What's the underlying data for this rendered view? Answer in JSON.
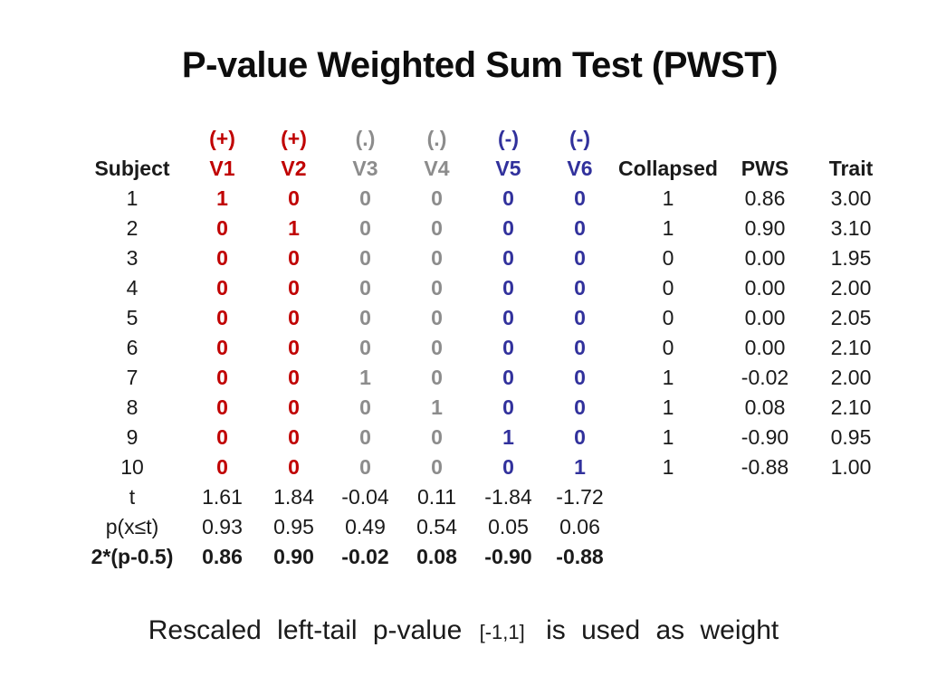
{
  "title": "P-value Weighted Sum Test (PWST)",
  "colors": {
    "positive": "#c00000",
    "neutral": "#8c8c8c",
    "negative": "#31319c"
  },
  "table": {
    "sign_row": [
      "",
      "(+)",
      "(+)",
      "(.)",
      "(.)",
      "(-)",
      "(-)",
      "",
      "",
      ""
    ],
    "headers": [
      "Subject",
      "V1",
      "V2",
      "V3",
      "V4",
      "V5",
      "V6",
      "Collapsed",
      "PWS",
      "Trait"
    ],
    "rows": [
      {
        "subject": "1",
        "v": [
          "1",
          "0",
          "0",
          "0",
          "0",
          "0"
        ],
        "collapsed": "1",
        "pws": "0.86",
        "trait": "3.00"
      },
      {
        "subject": "2",
        "v": [
          "0",
          "1",
          "0",
          "0",
          "0",
          "0"
        ],
        "collapsed": "1",
        "pws": "0.90",
        "trait": "3.10"
      },
      {
        "subject": "3",
        "v": [
          "0",
          "0",
          "0",
          "0",
          "0",
          "0"
        ],
        "collapsed": "0",
        "pws": "0.00",
        "trait": "1.95"
      },
      {
        "subject": "4",
        "v": [
          "0",
          "0",
          "0",
          "0",
          "0",
          "0"
        ],
        "collapsed": "0",
        "pws": "0.00",
        "trait": "2.00"
      },
      {
        "subject": "5",
        "v": [
          "0",
          "0",
          "0",
          "0",
          "0",
          "0"
        ],
        "collapsed": "0",
        "pws": "0.00",
        "trait": "2.05"
      },
      {
        "subject": "6",
        "v": [
          "0",
          "0",
          "0",
          "0",
          "0",
          "0"
        ],
        "collapsed": "0",
        "pws": "0.00",
        "trait": "2.10"
      },
      {
        "subject": "7",
        "v": [
          "0",
          "0",
          "1",
          "0",
          "0",
          "0"
        ],
        "collapsed": "1",
        "pws": "-0.02",
        "trait": "2.00"
      },
      {
        "subject": "8",
        "v": [
          "0",
          "0",
          "0",
          "1",
          "0",
          "0"
        ],
        "collapsed": "1",
        "pws": "0.08",
        "trait": "2.10"
      },
      {
        "subject": "9",
        "v": [
          "0",
          "0",
          "0",
          "0",
          "1",
          "0"
        ],
        "collapsed": "1",
        "pws": "-0.90",
        "trait": "0.95"
      },
      {
        "subject": "10",
        "v": [
          "0",
          "0",
          "0",
          "0",
          "0",
          "1"
        ],
        "collapsed": "1",
        "pws": "-0.88",
        "trait": "1.00"
      }
    ],
    "stat_rows": [
      {
        "label": "t",
        "v": [
          "1.61",
          "1.84",
          "-0.04",
          "0.11",
          "-1.84",
          "-1.72"
        ],
        "bold": false
      },
      {
        "label": "p(x≤t)",
        "v": [
          "0.93",
          "0.95",
          "0.49",
          "0.54",
          "0.05",
          "0.06"
        ],
        "bold": false
      },
      {
        "label": "2*(p-0.5)",
        "v": [
          "0.86",
          "0.90",
          "-0.02",
          "0.08",
          "-0.90",
          "-0.88"
        ],
        "bold": true
      }
    ]
  },
  "caption": {
    "part1": "Rescaled left-tail p-value",
    "bracket": "[-1,1]",
    "part2": "is used as weight"
  }
}
